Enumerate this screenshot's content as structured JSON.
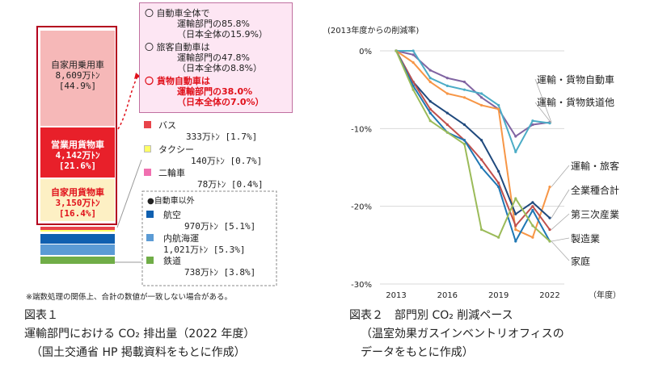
{
  "chart_data": [
    {
      "type": "bar",
      "stacked": true,
      "categories": [
        "2022"
      ],
      "series": [
        {
          "name": "自家用乗用車",
          "value_label": "8,609万ﾄﾝ",
          "share_label": "[44.9%]",
          "color": "#f6b8b8"
        },
        {
          "name": "営業用貨物車",
          "value_label": "4,142万ﾄﾝ",
          "share_label": "[21.6%]",
          "color": "#e8202a"
        },
        {
          "name": "自家用貨物車",
          "value_label": "3,150万ﾄﾝ",
          "share_label": "[16.4%]",
          "color": "#fdf0c4"
        },
        {
          "name": "バス",
          "value_label": "333万ﾄﾝ",
          "share_label": "[1.7%]",
          "color": "#e8434a"
        },
        {
          "name": "タクシー",
          "value_label": "140万ﾄﾝ",
          "share_label": "[0.7%]",
          "color": "#ffff66"
        },
        {
          "name": "二輪車",
          "value_label": "78万ﾄﾝ",
          "share_label": "[0.4%]",
          "color": "#f070b0"
        },
        {
          "name": "航空",
          "value_label": "970万ﾄﾝ",
          "share_label": "[5.1%]",
          "color": "#1060b0"
        },
        {
          "name": "内航海運",
          "value_label": "1,021万ﾄﾝ",
          "share_label": "[5.3%]",
          "color": "#5b9bd5"
        },
        {
          "name": "鉄道",
          "value_label": "738万ﾄﾝ",
          "share_label": "[3.8%]",
          "color": "#70ad47"
        }
      ],
      "shares": [
        44.9,
        21.6,
        16.4,
        1.7,
        0.7,
        0.4,
        5.1,
        5.3,
        3.8
      ],
      "other_group_label": "●自動車以外",
      "callout": {
        "items": [
          {
            "lines": [
              "〇 自動車全体で",
              "運輸部門の85.8%",
              "（日本全体の15.9%）"
            ],
            "color": "#222222"
          },
          {
            "lines": [
              "〇 旅客自動車は",
              "運輸部門の47.8%",
              "（日本全体の8.8%）"
            ],
            "color": "#222222"
          },
          {
            "lines": [
              "〇 貨物自動車は",
              "運輸部門の38.0%",
              "（日本全体の7.0%）"
            ],
            "color": "#e0101a"
          }
        ]
      },
      "note": "※端数処理の関係上、合計の数値が一致しない場合がある。",
      "caption": [
        "図表１",
        "運輸部門における CO₂ 排出量（2022 年度）",
        "（国土交通省 HP 掲載資料をもとに作成）"
      ]
    },
    {
      "type": "line",
      "ylabel_top": "(2013年度からの削減率)",
      "xlabel_right": "（年度）",
      "x": [
        2013,
        2014,
        2015,
        2016,
        2017,
        2018,
        2019,
        2020,
        2021,
        2022
      ],
      "x_ticks": [
        2013,
        2016,
        2019,
        2022
      ],
      "y_ticks": [
        0,
        -10,
        -20,
        -30
      ],
      "y_tick_labels": [
        "0%",
        "-10%",
        "-20%",
        "-30%"
      ],
      "ylim": [
        -30,
        0
      ],
      "grid": true,
      "series": [
        {
          "name": "運輸・貨物自動車",
          "color": "#8064a2",
          "values": [
            0,
            -0.5,
            -2.5,
            -3.5,
            -4,
            -6,
            -7.5,
            -11,
            -9.5,
            -9.2
          ]
        },
        {
          "name": "運輸・貨物鉄道他",
          "color": "#4bacc6",
          "values": [
            0,
            0,
            -3.5,
            -4.5,
            -5,
            -5.5,
            -7,
            -13,
            -9,
            -9.3
          ]
        },
        {
          "name": "運輸・旅客",
          "color": "#f79646",
          "values": [
            0,
            -1.5,
            -4,
            -5.5,
            -6,
            -7,
            -7.5,
            -23,
            -24,
            -17.5
          ]
        },
        {
          "name": "全業種合計",
          "color": "#1f497d",
          "values": [
            0,
            -4,
            -6.5,
            -8,
            -9.5,
            -11.5,
            -15.5,
            -21,
            -19.5,
            -21.5
          ]
        },
        {
          "name": "第三次産業",
          "color": "#c0504d",
          "values": [
            0,
            -4,
            -7.5,
            -9.5,
            -11.5,
            -14,
            -17,
            -22.5,
            -20,
            -23
          ]
        },
        {
          "name": "製造業",
          "color": "#1f77b4",
          "values": [
            0,
            -4.5,
            -8,
            -10.5,
            -11.5,
            -15,
            -17.5,
            -24.5,
            -20.5,
            -24.5
          ]
        },
        {
          "name": "家庭",
          "color": "#9bbb59",
          "values": [
            0,
            -5,
            -9,
            -10.5,
            -12,
            -23,
            -24,
            -19,
            -22.5,
            -24.5
          ]
        }
      ],
      "caption": [
        "図表２　部門別 CO₂ 削減ペース",
        "（温室効果ガスインベントリオフィスの",
        "データをもとに作成）"
      ]
    }
  ]
}
